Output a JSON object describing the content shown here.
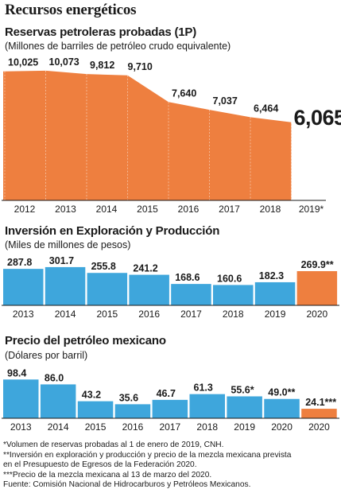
{
  "title": "Recursos energéticos",
  "colors": {
    "blue": "#3ea6dc",
    "blue_highlight": "#56bbea",
    "orange": "#ee7f3f",
    "orange_light": "#f4a06e"
  },
  "chart_data": [
    {
      "type": "area",
      "title": "Reservas petroleras probadas (1P)",
      "subtitle": "(Millones de barriles de petróleo crudo equivalente)",
      "categories": [
        "2012",
        "2013",
        "2014",
        "2015",
        "2016",
        "2017",
        "2018",
        "2019*"
      ],
      "values": [
        10025,
        10073,
        9812,
        9710,
        7640,
        7037,
        6464,
        6065
      ],
      "labels": [
        "10,025",
        "10,073",
        "9,812",
        "9,710",
        "7,640",
        "7,037",
        "6,464",
        "6,065"
      ],
      "ylim": [
        0,
        10500
      ],
      "grid": true,
      "highlight_last": true
    },
    {
      "type": "bar",
      "title": "Inversión en Exploración y Producción",
      "subtitle": "(Miles de millones de pesos)",
      "categories": [
        "2013",
        "2014",
        "2015",
        "2016",
        "2017",
        "2018",
        "2019",
        "2020"
      ],
      "values": [
        287.8,
        301.7,
        255.8,
        241.2,
        168.6,
        160.6,
        182.3,
        269.9
      ],
      "labels": [
        "287.8",
        "301.7",
        "255.8",
        "241.2",
        "168.6",
        "160.6",
        "182.3",
        "269.9**"
      ],
      "ylim": [
        0,
        320
      ],
      "highlight_index": 7
    },
    {
      "type": "bar",
      "title": "Precio del petróleo mexicano",
      "subtitle": "(Dólares por barril)",
      "categories": [
        "2013",
        "2014",
        "2015",
        "2016",
        "2017",
        "2018",
        "2019",
        "2020",
        "2020"
      ],
      "values": [
        98.4,
        86.0,
        43.2,
        35.6,
        46.7,
        61.3,
        55.6,
        49.0,
        24.1
      ],
      "labels": [
        "98.4",
        "86.0",
        "43.2",
        "35.6",
        "46.7",
        "61.3",
        "55.6*",
        "49.0**",
        "24.1***"
      ],
      "ylim": [
        0,
        105
      ],
      "highlight_index": 8
    }
  ],
  "notes": [
    "*Volumen de reservas probadas al 1 de enero de 2019, CNH.",
    "**Inversión en exploración y producción y precio de la mezcla mexicana prevista",
    "en el Presupuesto de Egresos de la Federación 2020.",
    "***Precio de la mezcla mexicana al 13 de marzo del 2020.",
    "Fuente: Comisión Nacional de Hidrocarburos y Petróleos Mexicanos."
  ]
}
